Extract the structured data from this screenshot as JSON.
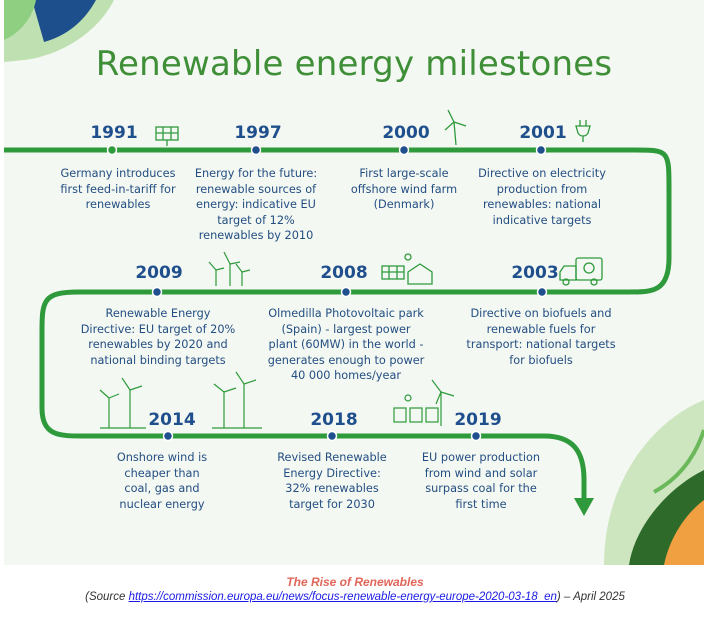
{
  "title": "Renewable energy milestones",
  "colors": {
    "path": "#2e9a3c",
    "year": "#1f4f8c",
    "title": "#3f8f38",
    "dot": "#1f4f8c"
  },
  "milestones": [
    {
      "year": "1991",
      "text": "Germany introduces first feed-in-tariff for renewables",
      "icon": "solar-panel-icon"
    },
    {
      "year": "1997",
      "text": "Energy for the future: renewable sources of energy: indicative EU target of 12% renewables by 2010",
      "icon": ""
    },
    {
      "year": "2000",
      "text": "First large-scale offshore wind farm (Denmark)",
      "icon": "wind-turbine-icon"
    },
    {
      "year": "2001",
      "text": "Directive on electricity production from renewables: national indicative targets",
      "icon": "plug-leaf-icon"
    },
    {
      "year": "2003",
      "text": "Directive on biofuels and renewable fuels for transport: national targets for biofuels",
      "icon": "recycling-truck-icon"
    },
    {
      "year": "2008",
      "text": "Olmedilla Photovoltaic park (Spain) - largest power plant (60MW) in the world - generates enough to power 40 000 homes/year",
      "icon": "solar-house-icon"
    },
    {
      "year": "2009",
      "text": "Renewable Energy Directive: EU target of 20% renewables by 2020 and national binding targets",
      "icon": "wind-farm-icon"
    },
    {
      "year": "2014",
      "text": "Onshore wind is cheaper than coal, gas and nuclear energy",
      "icon": "wind-turbines-icon"
    },
    {
      "year": "2018",
      "text": "Revised Renewable Energy Directive: 32% renewables target for 2030",
      "icon": ""
    },
    {
      "year": "2019",
      "text": "EU power production from wind and solar surpass coal for the first time",
      "icon": "solar-wind-icon"
    }
  ],
  "caption": {
    "title": "The Rise of Renewables",
    "prefix": "(Source ",
    "link": "https://commission.europa.eu/news/focus-renewable-energy-europe-2020-03-18_en",
    "suffix": ") – April 2025"
  }
}
